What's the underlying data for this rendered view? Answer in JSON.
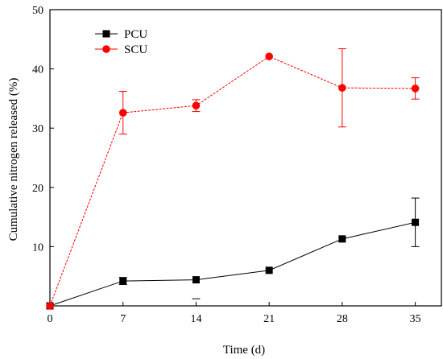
{
  "chart_data": {
    "type": "line",
    "xlabel": "Time (d)",
    "ylabel": "Cumulative nitrogen released (%)",
    "xlim": [
      0,
      37.5
    ],
    "ylim": [
      0,
      50
    ],
    "x_ticks": [
      "0",
      "7",
      "14",
      "21",
      "28",
      "35"
    ],
    "x_tick_values": [
      0,
      7,
      14,
      21,
      28,
      35
    ],
    "y_ticks": [
      "10",
      "20",
      "30",
      "40",
      "50"
    ],
    "y_tick_values": [
      10,
      20,
      30,
      40,
      50
    ],
    "grid": false,
    "legend_position": "top-left",
    "series": [
      {
        "name": "PCU",
        "color": "#000000",
        "marker": "square",
        "x": [
          0,
          7,
          14,
          21,
          28,
          35
        ],
        "y": [
          0,
          4.2,
          4.4,
          6.0,
          11.3,
          14.1
        ],
        "error": [
          0,
          0.6,
          0,
          0,
          0,
          4.1
        ],
        "stray_marks": [
          {
            "x": 14,
            "y": 1.2
          }
        ]
      },
      {
        "name": "SCU",
        "color": "#ff0000",
        "marker": "circle",
        "x": [
          0,
          7,
          14,
          21,
          28,
          35
        ],
        "y": [
          0,
          32.6,
          33.8,
          42.1,
          36.8,
          36.7
        ],
        "error": [
          0,
          3.6,
          1.0,
          0,
          6.6,
          1.8
        ]
      }
    ]
  }
}
